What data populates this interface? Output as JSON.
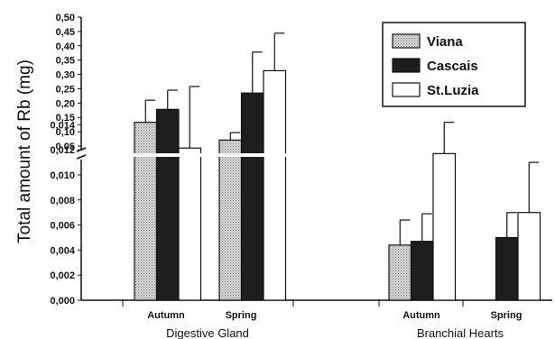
{
  "chart_data": {
    "type": "bar",
    "ylabel": "Total amount of Rb (mg)",
    "axis_break": true,
    "upper_axis": {
      "ylim": [
        0.05,
        0.5
      ],
      "ticks": [
        "0,50",
        "0,45",
        "0,40",
        "0,35",
        "0,30",
        "0,25",
        "0,20",
        "0,15",
        "0,10",
        "0,05"
      ],
      "tick_values": [
        0.5,
        0.45,
        0.4,
        0.35,
        0.3,
        0.25,
        0.2,
        0.15,
        0.1,
        0.05
      ]
    },
    "lower_axis": {
      "ylim": [
        0,
        0.015
      ],
      "ticks": [
        "0,014",
        "0,012",
        "0,010",
        "0,008",
        "0,006",
        "0,004",
        "0,002",
        "0,000"
      ],
      "tick_values": [
        0.014,
        0.012,
        0.01,
        0.008,
        0.006,
        0.004,
        0.002,
        0.0
      ]
    },
    "groups": [
      "Digestive Gland",
      "Branchial Hearts"
    ],
    "categories": [
      {
        "label": "Autumn",
        "group": 0
      },
      {
        "label": "Spring",
        "group": 0
      },
      {
        "label": "Autumn",
        "group": 1
      },
      {
        "label": "Spring",
        "group": 1
      }
    ],
    "series": [
      {
        "name": "Viana",
        "fill": "#c8c8c8",
        "pattern": "dotted",
        "values": [
          0.133,
          0.071,
          0.0044,
          null
        ],
        "errors": [
          0.077,
          0.026,
          0.002,
          null
        ]
      },
      {
        "name": "Cascais",
        "fill": "#1e1e1e",
        "pattern": "solid",
        "values": [
          0.178,
          0.235,
          0.0047,
          0.005
        ],
        "errors": [
          0.067,
          0.143,
          0.0022,
          0.002
        ]
      },
      {
        "name": "St.Luzia",
        "fill": "#ffffff",
        "pattern": "solid",
        "values": [
          0.043,
          0.313,
          0.0117,
          0.007
        ],
        "errors": [
          0.215,
          0.131,
          0.0025,
          0.004
        ]
      }
    ],
    "legend": {
      "position": "top-right",
      "entries": [
        "Viana",
        "Cascais",
        "St.Luzia"
      ]
    },
    "grid": false
  }
}
